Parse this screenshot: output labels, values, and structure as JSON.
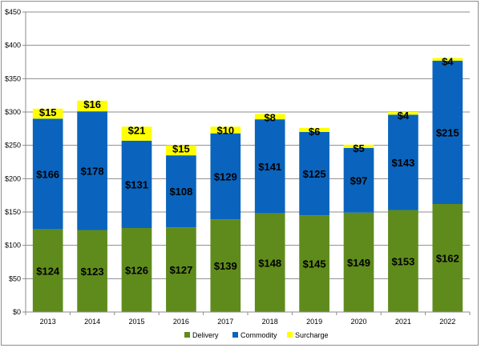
{
  "chart_data": {
    "type": "bar",
    "stacked": true,
    "categories": [
      "2013",
      "2014",
      "2015",
      "2016",
      "2017",
      "2018",
      "2019",
      "2020",
      "2021",
      "2022"
    ],
    "series": [
      {
        "name": "Delivery",
        "color": "#5f8b1c",
        "values": [
          124,
          123,
          126,
          127,
          139,
          148,
          145,
          149,
          153,
          162
        ]
      },
      {
        "name": "Commodity",
        "color": "#0a64bd",
        "values": [
          166,
          178,
          131,
          108,
          129,
          141,
          125,
          97,
          143,
          215
        ]
      },
      {
        "name": "Surcharge",
        "color": "#ffff00",
        "values": [
          15,
          16,
          21,
          15,
          10,
          8,
          6,
          5,
          4,
          4
        ]
      }
    ],
    "data_labels": {
      "Delivery": [
        "$124",
        "$123",
        "$126",
        "$127",
        "$139",
        "$148",
        "$145",
        "$149",
        "$153",
        "$162"
      ],
      "Commodity": [
        "$166",
        "$178",
        "$131",
        "$108",
        "$129",
        "$141",
        "$125",
        "$97",
        "$143",
        "$215"
      ],
      "Surcharge": [
        "$15",
        "$16",
        "$21",
        "$15",
        "$10",
        "$8",
        "$6",
        "$5",
        "$4",
        "$4"
      ]
    },
    "y_ticks": [
      "$0",
      "$50",
      "$100",
      "$150",
      "$200",
      "$250",
      "$300",
      "$350",
      "$400",
      "$450"
    ],
    "ylim": [
      0,
      450
    ],
    "grid": true,
    "legend_position": "bottom"
  }
}
